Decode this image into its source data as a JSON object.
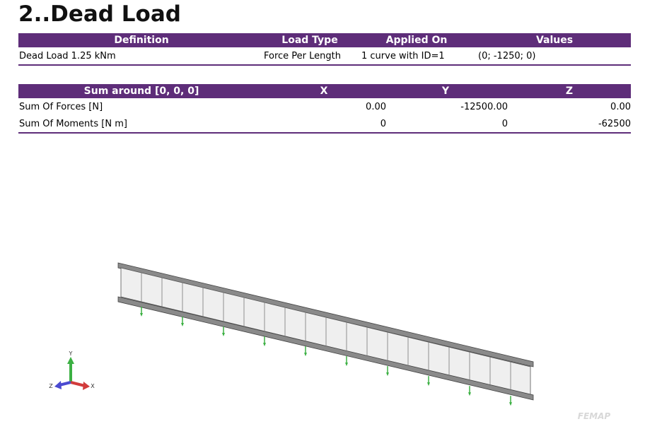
{
  "header": {
    "title": "2..Dead Load"
  },
  "load_table": {
    "columns": [
      "Definition",
      "Load Type",
      "Applied On",
      "Values"
    ],
    "rows": [
      [
        "Dead Load 1.25 kNm",
        "Force Per Length",
        "1 curve with ID=1",
        "(0; -1250; 0)"
      ]
    ]
  },
  "sum_table": {
    "columns": [
      "Sum around  [0, 0, 0]",
      "X",
      "Y",
      "Z"
    ],
    "rows": [
      [
        "Sum Of Forces [N]",
        "0.00",
        "-12500.00",
        "0.00"
      ],
      [
        "Sum Of Moments [N m]",
        "0",
        "0",
        "-62500"
      ]
    ]
  },
  "view": {
    "axes": {
      "y": "Y",
      "z": "Z",
      "x": "X"
    },
    "logo": "FEMAP"
  }
}
